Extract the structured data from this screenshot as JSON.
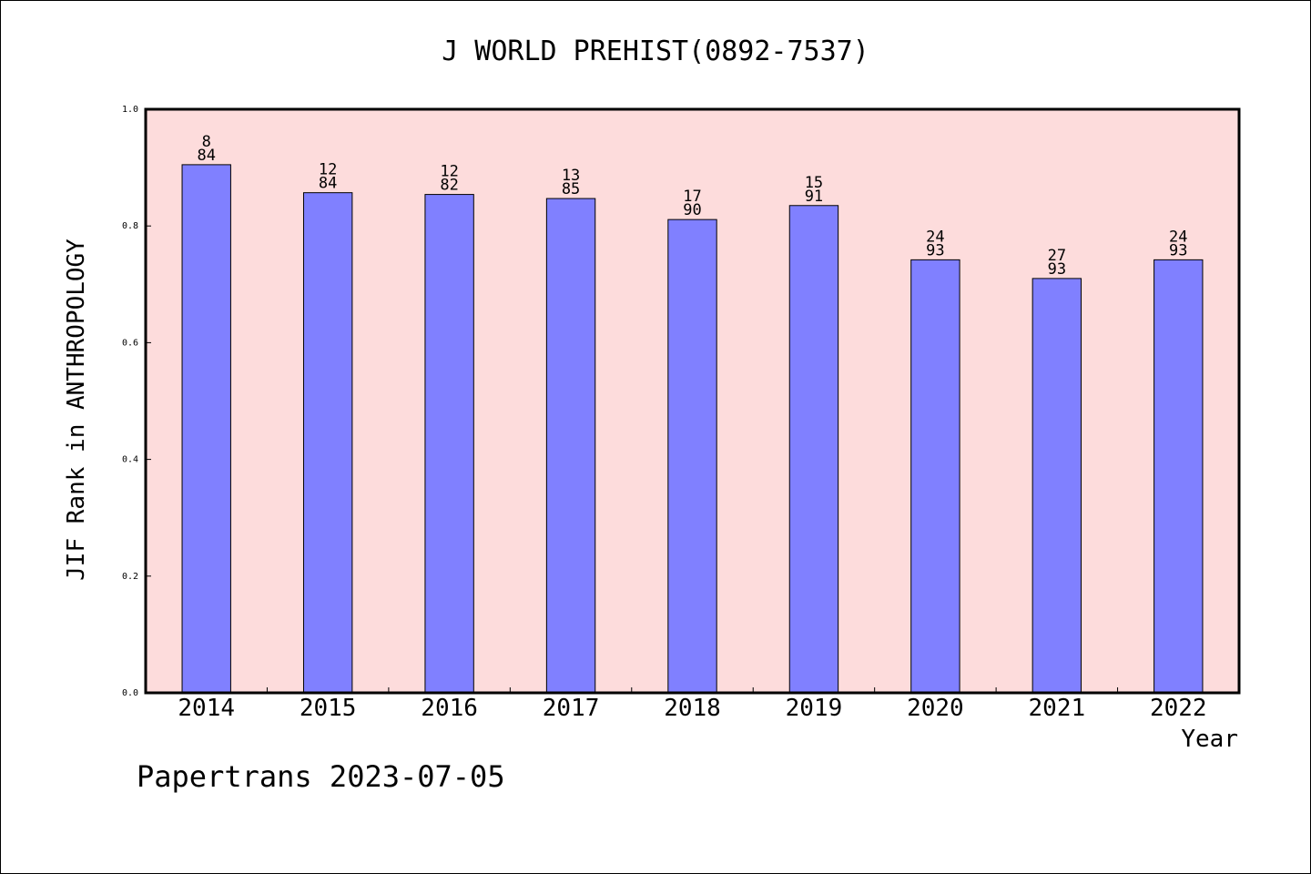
{
  "chart_data": {
    "type": "bar",
    "title": "J WORLD PREHIST(0892-7537)",
    "xlabel": "Year",
    "ylabel": "JIF Rank in ANTHROPOLOGY",
    "ylim": [
      0,
      1.0
    ],
    "yticks": [
      "0.0",
      "0.2",
      "0.4",
      "0.6",
      "0.8",
      "1.0"
    ],
    "categories": [
      "2014",
      "2015",
      "2016",
      "2017",
      "2018",
      "2019",
      "2020",
      "2021",
      "2022"
    ],
    "values": [
      0.905,
      0.857,
      0.854,
      0.847,
      0.811,
      0.835,
      0.742,
      0.71,
      0.742
    ],
    "rank_labels": [
      {
        "rank": "8",
        "total": "84"
      },
      {
        "rank": "12",
        "total": "84"
      },
      {
        "rank": "12",
        "total": "82"
      },
      {
        "rank": "13",
        "total": "85"
      },
      {
        "rank": "17",
        "total": "90"
      },
      {
        "rank": "15",
        "total": "91"
      },
      {
        "rank": "24",
        "total": "93"
      },
      {
        "rank": "27",
        "total": "93"
      },
      {
        "rank": "24",
        "total": "93"
      }
    ],
    "grid": false,
    "colors": {
      "plot_background": "#fddcdc",
      "bar_fill": "#8080ff",
      "bar_stroke": "#000000"
    }
  },
  "footer": {
    "text": "Papertrans 2023-07-05"
  }
}
